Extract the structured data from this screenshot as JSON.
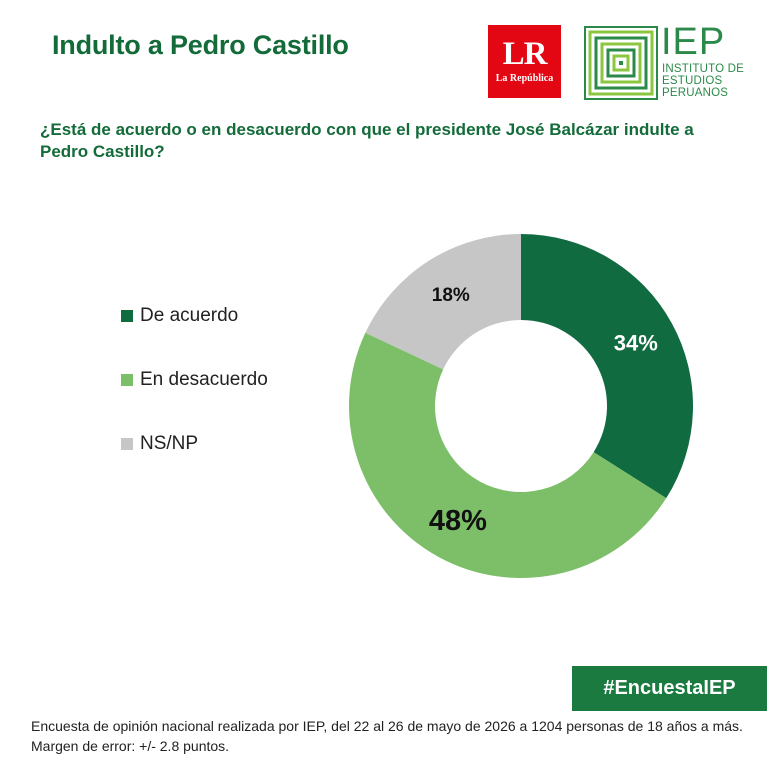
{
  "header": {
    "title": "Indulto a Pedro Castillo",
    "lr_logo": {
      "big": "LR",
      "small": "La República",
      "bg_color": "#e30613"
    },
    "iep_logo": {
      "word": "IEP",
      "sub": [
        "INSTITUTO DE",
        "ESTUDIOS",
        "PERUANOS"
      ],
      "color": "#2b8a4a"
    }
  },
  "question": "¿Está de acuerdo o en desacuerdo con que el presidente José Balcázar indulte a Pedro Castillo?",
  "chart_data": {
    "type": "pie",
    "donut": true,
    "labels": [
      "De acuerdo",
      "En desacuerdo",
      "NS/NP"
    ],
    "values": [
      34,
      48,
      18
    ],
    "value_labels": [
      "34%",
      "48%",
      "18%"
    ],
    "colors": [
      "#116b41",
      "#7cbf68",
      "#c6c6c6"
    ],
    "label_colors": [
      "#ffffff",
      "#111111",
      "#111111"
    ],
    "legend_position": "left"
  },
  "hashtag": "#EncuestaIEP",
  "footnote": "Encuesta de opinión nacional realizada por IEP, del 22 al 26 de mayo de 2026 a 1204 personas de 18 años a más. Margen de error: +/- 2.8 puntos."
}
